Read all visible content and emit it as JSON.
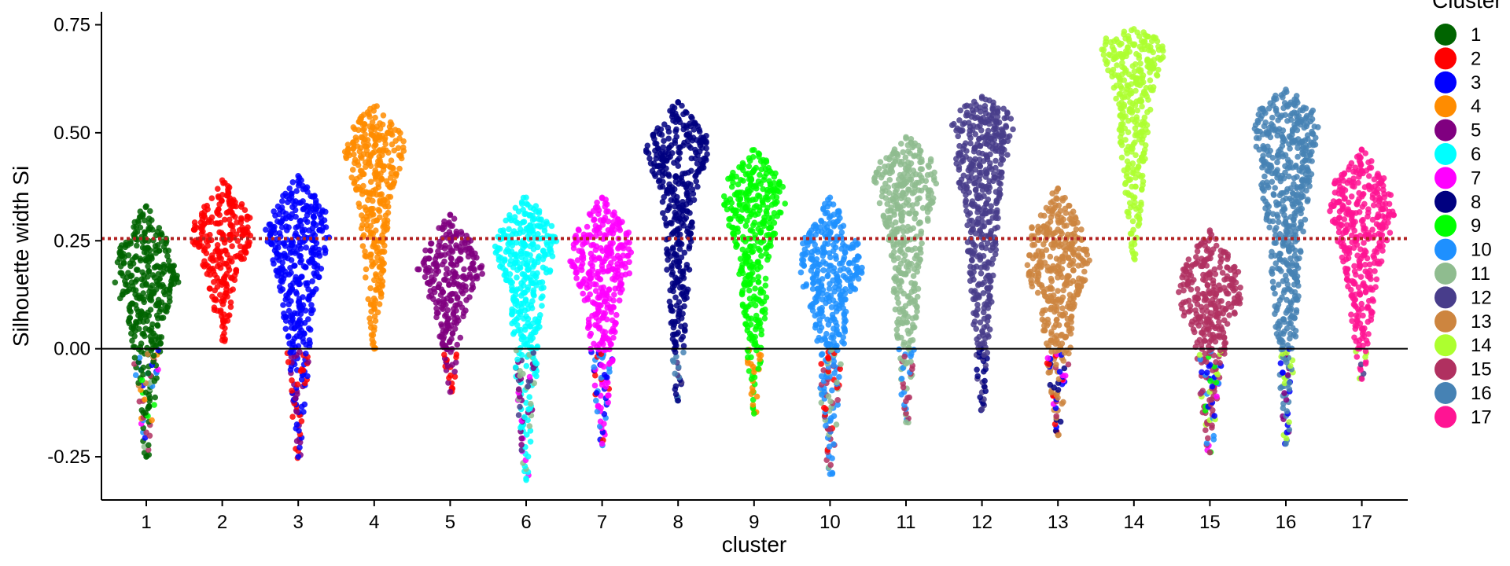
{
  "chart_data": {
    "type": "scatter",
    "subtype": "beeswarm",
    "xlabel": "cluster",
    "ylabel": "Silhouette width Si",
    "ylim": [
      -0.35,
      0.78
    ],
    "yticks": [
      -0.25,
      0.0,
      0.25,
      0.5,
      0.75
    ],
    "ytick_labels": [
      "-0.25",
      "0.00",
      "0.25",
      "0.50",
      "0.75"
    ],
    "categories": [
      "1",
      "2",
      "3",
      "4",
      "5",
      "6",
      "7",
      "8",
      "9",
      "10",
      "11",
      "12",
      "13",
      "14",
      "15",
      "16",
      "17"
    ],
    "reference_lines": [
      {
        "y": 0.0,
        "style": "solid",
        "color": "#000000"
      },
      {
        "y": 0.255,
        "style": "dotted",
        "color": "#B22222"
      }
    ],
    "legend": {
      "title": "Cluster",
      "placement": "right",
      "entries": [
        {
          "label": "1",
          "color": "#006400"
        },
        {
          "label": "2",
          "color": "#FF0000"
        },
        {
          "label": "3",
          "color": "#0000FF"
        },
        {
          "label": "4",
          "color": "#FF8C00"
        },
        {
          "label": "5",
          "color": "#800080"
        },
        {
          "label": "6",
          "color": "#00FFFF"
        },
        {
          "label": "7",
          "color": "#FF00FF"
        },
        {
          "label": "8",
          "color": "#000080"
        },
        {
          "label": "9",
          "color": "#00FF00"
        },
        {
          "label": "10",
          "color": "#1E90FF"
        },
        {
          "label": "11",
          "color": "#8FBC8F"
        },
        {
          "label": "12",
          "color": "#483D8B"
        },
        {
          "label": "13",
          "color": "#CD853F"
        },
        {
          "label": "14",
          "color": "#ADFF2F"
        },
        {
          "label": "15",
          "color": "#B03060"
        },
        {
          "label": "16",
          "color": "#4682B4"
        },
        {
          "label": "17",
          "color": "#FF1493"
        }
      ]
    },
    "series": [
      {
        "cluster": "1",
        "min": -0.25,
        "q1": 0.05,
        "median": 0.16,
        "q3": 0.22,
        "max": 0.33,
        "neg_neighbor_colors": [
          "#CD853F",
          "#8FBC8F",
          "#FF8C00",
          "#1E90FF",
          "#00FF00",
          "#FF00FF",
          "#B03060",
          "#0000FF"
        ]
      },
      {
        "cluster": "2",
        "min": 0.02,
        "q1": 0.18,
        "median": 0.26,
        "q3": 0.3,
        "max": 0.39,
        "neg_neighbor_colors": []
      },
      {
        "cluster": "3",
        "min": -0.25,
        "q1": 0.12,
        "median": 0.27,
        "q3": 0.31,
        "max": 0.4,
        "neg_neighbor_colors": [
          "#FF0000",
          "#800080"
        ]
      },
      {
        "cluster": "4",
        "min": 0.0,
        "q1": 0.35,
        "median": 0.47,
        "q3": 0.5,
        "max": 0.56,
        "neg_neighbor_colors": []
      },
      {
        "cluster": "5",
        "min": -0.1,
        "q1": 0.1,
        "median": 0.18,
        "q3": 0.22,
        "max": 0.31,
        "neg_neighbor_colors": [
          "#FF0000"
        ]
      },
      {
        "cluster": "6",
        "min": -0.3,
        "q1": 0.12,
        "median": 0.24,
        "q3": 0.28,
        "max": 0.35,
        "neg_neighbor_colors": [
          "#483D8B",
          "#800080",
          "#8FBC8F",
          "#FF00FF"
        ]
      },
      {
        "cluster": "7",
        "min": -0.22,
        "q1": 0.1,
        "median": 0.21,
        "q3": 0.26,
        "max": 0.35,
        "neg_neighbor_colors": [
          "#1E90FF",
          "#FF0000",
          "#0000FF"
        ]
      },
      {
        "cluster": "8",
        "min": -0.12,
        "q1": 0.35,
        "median": 0.46,
        "q3": 0.49,
        "max": 0.57,
        "neg_neighbor_colors": [
          "#483D8B",
          "#4682B4"
        ]
      },
      {
        "cluster": "9",
        "min": -0.15,
        "q1": 0.22,
        "median": 0.35,
        "q3": 0.39,
        "max": 0.46,
        "neg_neighbor_colors": [
          "#FF8C00"
        ]
      },
      {
        "cluster": "10",
        "min": -0.29,
        "q1": 0.08,
        "median": 0.18,
        "q3": 0.24,
        "max": 0.35,
        "neg_neighbor_colors": [
          "#FF0000",
          "#B03060",
          "#8FBC8F"
        ]
      },
      {
        "cluster": "11",
        "min": -0.17,
        "q1": 0.25,
        "median": 0.39,
        "q3": 0.43,
        "max": 0.49,
        "neg_neighbor_colors": [
          "#1E90FF",
          "#B03060"
        ]
      },
      {
        "cluster": "12",
        "min": -0.14,
        "q1": 0.3,
        "median": 0.52,
        "q3": 0.55,
        "max": 0.58,
        "neg_neighbor_colors": [
          "#000080"
        ]
      },
      {
        "cluster": "13",
        "min": -0.2,
        "q1": 0.08,
        "median": 0.2,
        "q3": 0.27,
        "max": 0.37,
        "neg_neighbor_colors": [
          "#FF00FF",
          "#0000FF",
          "#FF0000",
          "#000080",
          "#B03060"
        ]
      },
      {
        "cluster": "14",
        "min": 0.21,
        "q1": 0.55,
        "median": 0.7,
        "q3": 0.72,
        "max": 0.74,
        "neg_neighbor_colors": []
      },
      {
        "cluster": "15",
        "min": -0.24,
        "q1": 0.02,
        "median": 0.12,
        "q3": 0.18,
        "max": 0.27,
        "neg_neighbor_colors": [
          "#0000FF",
          "#ADFF2F",
          "#FF00FF",
          "#1E90FF",
          "#00FF00"
        ]
      },
      {
        "cluster": "16",
        "min": -0.22,
        "q1": 0.25,
        "median": 0.52,
        "q3": 0.55,
        "max": 0.6,
        "neg_neighbor_colors": [
          "#ADFF2F",
          "#0000FF",
          "#800080"
        ]
      },
      {
        "cluster": "17",
        "min": -0.07,
        "q1": 0.18,
        "median": 0.31,
        "q3": 0.38,
        "max": 0.46,
        "neg_neighbor_colors": [
          "#483D8B",
          "#ADFF2F"
        ]
      }
    ]
  }
}
